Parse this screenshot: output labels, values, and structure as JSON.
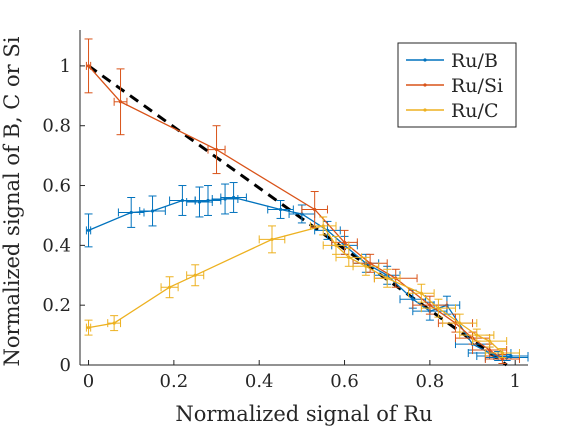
{
  "chart_data": {
    "type": "line",
    "title": "",
    "xlabel": "Normalized signal of Ru",
    "ylabel": "Normalized signal of B, C or Si",
    "xlim": [
      -0.02,
      1.03
    ],
    "ylim": [
      0,
      1.12
    ],
    "xticks": [
      "0",
      "0.2",
      "0.4",
      "0.6",
      "0.8",
      "1"
    ],
    "yticks": [
      "0",
      "0.2",
      "0.4",
      "0.6",
      "0.8",
      "1"
    ],
    "grid": false,
    "legend_position": "top-right",
    "colors": {
      "Ru/B": "#0072BD",
      "Ru/Si": "#D95319",
      "Ru/C": "#EDB120",
      "reference": "#000000"
    },
    "series": [
      {
        "name": "Ru/B",
        "points": [
          {
            "x": 0.0,
            "y": 0.45,
            "xerr": 0.005,
            "yerr": 0.055
          },
          {
            "x": 0.1,
            "y": 0.51,
            "xerr": 0.03,
            "yerr": 0.05
          },
          {
            "x": 0.15,
            "y": 0.515,
            "xerr": 0.03,
            "yerr": 0.05
          },
          {
            "x": 0.22,
            "y": 0.55,
            "xerr": 0.03,
            "yerr": 0.05
          },
          {
            "x": 0.26,
            "y": 0.545,
            "xerr": 0.03,
            "yerr": 0.05
          },
          {
            "x": 0.28,
            "y": 0.55,
            "xerr": 0.03,
            "yerr": 0.05
          },
          {
            "x": 0.32,
            "y": 0.555,
            "xerr": 0.03,
            "yerr": 0.05
          },
          {
            "x": 0.34,
            "y": 0.56,
            "xerr": 0.03,
            "yerr": 0.05
          },
          {
            "x": 0.45,
            "y": 0.52,
            "xerr": 0.03,
            "yerr": 0.03
          },
          {
            "x": 0.5,
            "y": 0.505,
            "xerr": 0.03,
            "yerr": 0.03
          },
          {
            "x": 0.56,
            "y": 0.45,
            "xerr": 0.03,
            "yerr": 0.03
          },
          {
            "x": 0.6,
            "y": 0.4,
            "xerr": 0.03,
            "yerr": 0.03
          },
          {
            "x": 0.65,
            "y": 0.34,
            "xerr": 0.03,
            "yerr": 0.03
          },
          {
            "x": 0.7,
            "y": 0.3,
            "xerr": 0.03,
            "yerr": 0.03
          },
          {
            "x": 0.76,
            "y": 0.22,
            "xerr": 0.03,
            "yerr": 0.03
          },
          {
            "x": 0.8,
            "y": 0.18,
            "xerr": 0.04,
            "yerr": 0.03
          },
          {
            "x": 0.84,
            "y": 0.2,
            "xerr": 0.03,
            "yerr": 0.03
          },
          {
            "x": 0.9,
            "y": 0.07,
            "xerr": 0.04,
            "yerr": 0.02
          },
          {
            "x": 0.94,
            "y": 0.04,
            "xerr": 0.05,
            "yerr": 0.02
          },
          {
            "x": 0.96,
            "y": 0.03,
            "xerr": 0.05,
            "yerr": 0.015
          },
          {
            "x": 0.98,
            "y": 0.025,
            "xerr": 0.05,
            "yerr": 0.01
          },
          {
            "x": 0.99,
            "y": 0.03,
            "xerr": 0.04,
            "yerr": 0.01
          }
        ]
      },
      {
        "name": "Ru/Si",
        "points": [
          {
            "x": 0.0,
            "y": 1.0,
            "xerr": 0.005,
            "yerr": 0.09
          },
          {
            "x": 0.075,
            "y": 0.88,
            "xerr": 0.015,
            "yerr": 0.11
          },
          {
            "x": 0.3,
            "y": 0.72,
            "xerr": 0.02,
            "yerr": 0.08
          },
          {
            "x": 0.53,
            "y": 0.52,
            "xerr": 0.03,
            "yerr": 0.06
          },
          {
            "x": 0.6,
            "y": 0.41,
            "xerr": 0.03,
            "yerr": 0.04
          },
          {
            "x": 0.66,
            "y": 0.34,
            "xerr": 0.04,
            "yerr": 0.03
          },
          {
            "x": 0.72,
            "y": 0.29,
            "xerr": 0.05,
            "yerr": 0.03
          },
          {
            "x": 0.8,
            "y": 0.2,
            "xerr": 0.04,
            "yerr": 0.03
          },
          {
            "x": 0.86,
            "y": 0.14,
            "xerr": 0.04,
            "yerr": 0.03
          },
          {
            "x": 0.9,
            "y": 0.09,
            "xerr": 0.04,
            "yerr": 0.02
          },
          {
            "x": 0.94,
            "y": 0.05,
            "xerr": 0.04,
            "yerr": 0.02
          },
          {
            "x": 0.97,
            "y": 0.02,
            "xerr": 0.04,
            "yerr": 0.015
          }
        ]
      },
      {
        "name": "Ru/C",
        "points": [
          {
            "x": 0.0,
            "y": 0.125,
            "xerr": 0.005,
            "yerr": 0.025
          },
          {
            "x": 0.06,
            "y": 0.14,
            "xerr": 0.015,
            "yerr": 0.025
          },
          {
            "x": 0.19,
            "y": 0.26,
            "xerr": 0.02,
            "yerr": 0.035
          },
          {
            "x": 0.25,
            "y": 0.3,
            "xerr": 0.02,
            "yerr": 0.035
          },
          {
            "x": 0.43,
            "y": 0.42,
            "xerr": 0.03,
            "yerr": 0.045
          },
          {
            "x": 0.55,
            "y": 0.465,
            "xerr": 0.03,
            "yerr": 0.03
          },
          {
            "x": 0.58,
            "y": 0.4,
            "xerr": 0.03,
            "yerr": 0.03
          },
          {
            "x": 0.61,
            "y": 0.36,
            "xerr": 0.03,
            "yerr": 0.03
          },
          {
            "x": 0.65,
            "y": 0.33,
            "xerr": 0.03,
            "yerr": 0.03
          },
          {
            "x": 0.7,
            "y": 0.29,
            "xerr": 0.03,
            "yerr": 0.03
          },
          {
            "x": 0.78,
            "y": 0.24,
            "xerr": 0.03,
            "yerr": 0.03
          },
          {
            "x": 0.82,
            "y": 0.19,
            "xerr": 0.04,
            "yerr": 0.03
          },
          {
            "x": 0.87,
            "y": 0.14,
            "xerr": 0.04,
            "yerr": 0.03
          },
          {
            "x": 0.91,
            "y": 0.1,
            "xerr": 0.04,
            "yerr": 0.02
          },
          {
            "x": 0.94,
            "y": 0.08,
            "xerr": 0.04,
            "yerr": 0.02
          },
          {
            "x": 0.97,
            "y": 0.04,
            "xerr": 0.04,
            "yerr": 0.015
          }
        ]
      }
    ],
    "reference_line": {
      "style": "dashed",
      "from": [
        0,
        1
      ],
      "to": [
        0.98,
        0
      ]
    }
  }
}
